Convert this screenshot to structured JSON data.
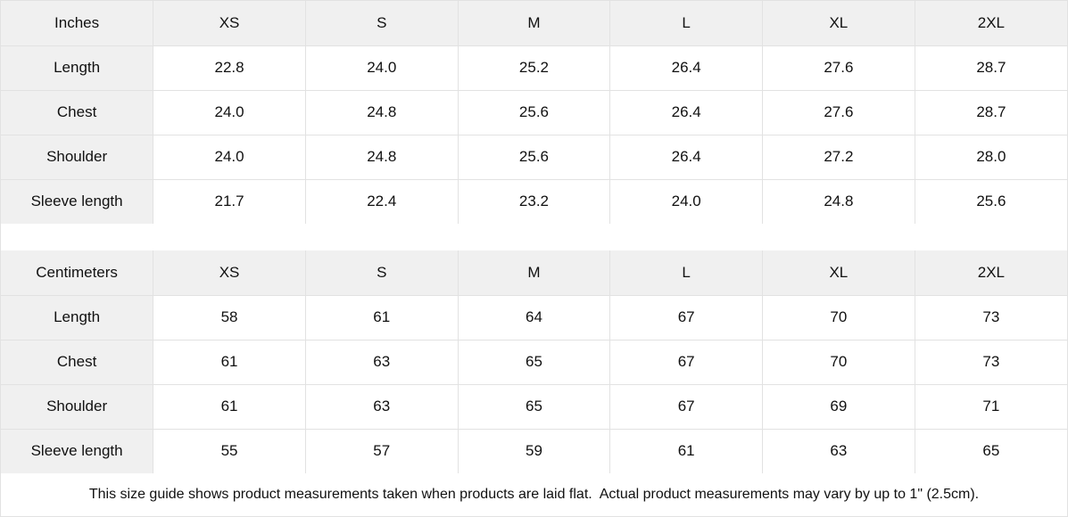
{
  "colors": {
    "header_bg": "#f0f0f0",
    "border": "#e2e2e2",
    "text": "#111111",
    "background": "#ffffff"
  },
  "inches_table": {
    "unit_label": "Inches",
    "sizes": [
      "XS",
      "S",
      "M",
      "L",
      "XL",
      "2XL"
    ],
    "rows": [
      {
        "label": "Length",
        "values": [
          "22.8",
          "24.0",
          "25.2",
          "26.4",
          "27.6",
          "28.7"
        ]
      },
      {
        "label": "Chest",
        "values": [
          "24.0",
          "24.8",
          "25.6",
          "26.4",
          "27.6",
          "28.7"
        ]
      },
      {
        "label": "Shoulder",
        "values": [
          "24.0",
          "24.8",
          "25.6",
          "26.4",
          "27.2",
          "28.0"
        ]
      },
      {
        "label": "Sleeve length",
        "values": [
          "21.7",
          "22.4",
          "23.2",
          "24.0",
          "24.8",
          "25.6"
        ]
      }
    ]
  },
  "centimeters_table": {
    "unit_label": "Centimeters",
    "sizes": [
      "XS",
      "S",
      "M",
      "L",
      "XL",
      "2XL"
    ],
    "rows": [
      {
        "label": "Length",
        "values": [
          "58",
          "61",
          "64",
          "67",
          "70",
          "73"
        ]
      },
      {
        "label": "Chest",
        "values": [
          "61",
          "63",
          "65",
          "67",
          "70",
          "73"
        ]
      },
      {
        "label": "Shoulder",
        "values": [
          "61",
          "63",
          "65",
          "67",
          "69",
          "71"
        ]
      },
      {
        "label": "Sleeve length",
        "values": [
          "55",
          "57",
          "59",
          "61",
          "63",
          "65"
        ]
      }
    ]
  },
  "footer": {
    "note": "This size guide shows product measurements taken when products are laid flat.  Actual product measurements may vary by up to 1\" (2.5cm)."
  }
}
